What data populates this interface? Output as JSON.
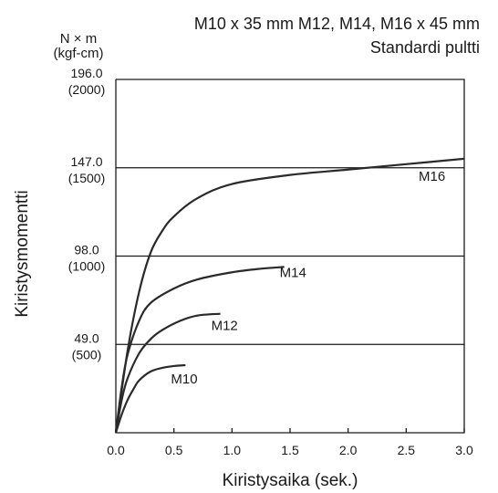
{
  "chart_data": {
    "type": "line",
    "subtitle_line1": "M10 x 35 mm M12, M14, M16 x 45 mm",
    "subtitle_line2": "Standardi pultti",
    "y_unit_line1": "N × m",
    "y_unit_line2": "(kgf-cm)",
    "xlabel": "Kiristysaika (sek.)",
    "ylabel": "Kiristysmomentti",
    "xlim": [
      0,
      3.0
    ],
    "ylim": [
      0,
      196.0
    ],
    "x_ticks": [
      "0.0",
      "0.5",
      "1.0",
      "1.5",
      "2.0",
      "2.5",
      "3.0"
    ],
    "y_ticks": [
      {
        "value": 196.0,
        "label": "196.0",
        "sublabel": "(2000)"
      },
      {
        "value": 147.0,
        "label": "147.0",
        "sublabel": "(1500)"
      },
      {
        "value": 98.0,
        "label": "98.0",
        "sublabel": "(1000)"
      },
      {
        "value": 49.0,
        "label": "49.0",
        "sublabel": "(500)"
      }
    ],
    "gridlines_y": [
      147.0,
      98.0,
      49.0
    ],
    "series": [
      {
        "name": "M16",
        "points": [
          [
            0,
            0
          ],
          [
            0.1,
            45
          ],
          [
            0.2,
            78
          ],
          [
            0.3,
            100
          ],
          [
            0.4,
            112
          ],
          [
            0.5,
            120
          ],
          [
            0.7,
            130
          ],
          [
            1.0,
            138
          ],
          [
            1.5,
            143
          ],
          [
            2.0,
            146
          ],
          [
            2.5,
            149
          ],
          [
            3.0,
            152
          ]
        ]
      },
      {
        "name": "M14",
        "points": [
          [
            0,
            0
          ],
          [
            0.05,
            25
          ],
          [
            0.1,
            43
          ],
          [
            0.2,
            62
          ],
          [
            0.3,
            72
          ],
          [
            0.5,
            80
          ],
          [
            0.7,
            85
          ],
          [
            1.0,
            89
          ],
          [
            1.25,
            91
          ],
          [
            1.45,
            92
          ]
        ]
      },
      {
        "name": "M12",
        "points": [
          [
            0,
            0
          ],
          [
            0.05,
            18
          ],
          [
            0.1,
            30
          ],
          [
            0.2,
            44
          ],
          [
            0.3,
            52
          ],
          [
            0.4,
            57
          ],
          [
            0.55,
            62
          ],
          [
            0.7,
            65
          ],
          [
            0.9,
            66
          ]
        ]
      },
      {
        "name": "M10",
        "points": [
          [
            0,
            0
          ],
          [
            0.05,
            10
          ],
          [
            0.1,
            18
          ],
          [
            0.15,
            24
          ],
          [
            0.2,
            29
          ],
          [
            0.3,
            34
          ],
          [
            0.4,
            36
          ],
          [
            0.5,
            37
          ],
          [
            0.6,
            37.5
          ]
        ]
      }
    ]
  }
}
